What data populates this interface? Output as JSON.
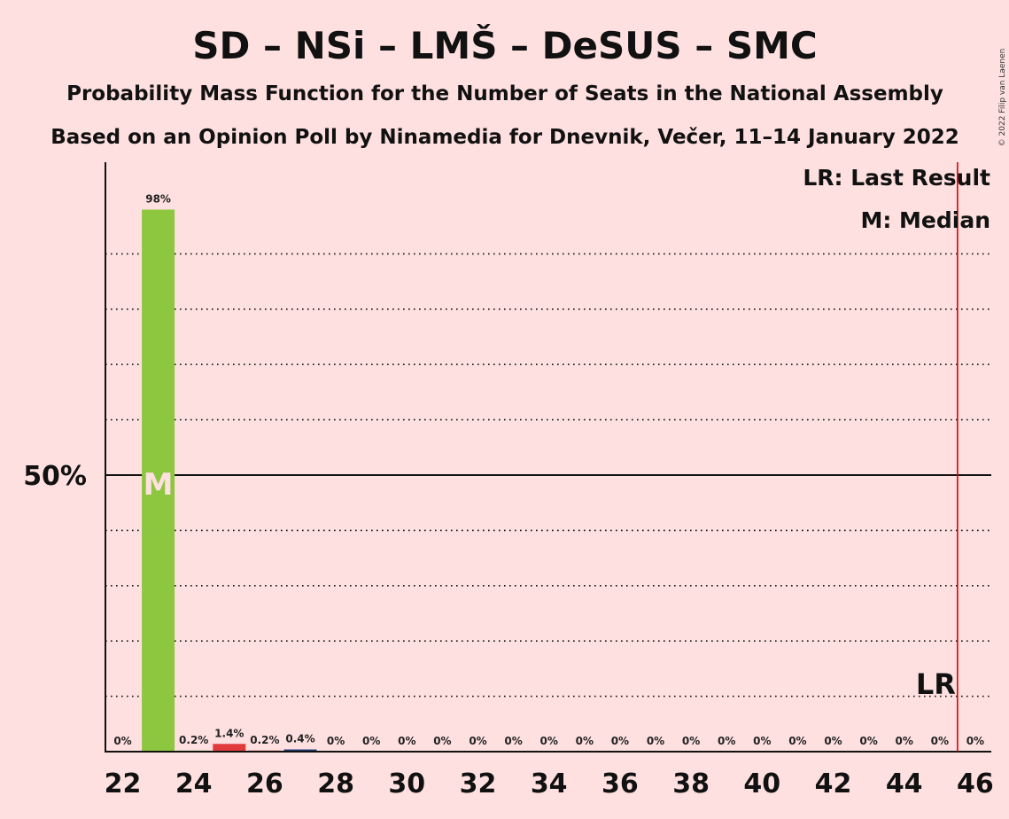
{
  "chart_data": {
    "type": "bar",
    "title": "SD – NSi – LMŠ – DeSUS – SMC",
    "subtitle_1": "Probability Mass Function for the Number of Seats in the National Assembly",
    "subtitle_2": "Based on an Opinion Poll by Ninamedia for Dnevnik, Večer, 11–14 January 2022",
    "copyright": "© 2022 Filip van Laenen",
    "xlabel": "",
    "ylabel": "",
    "x": [
      22,
      23,
      24,
      25,
      26,
      27,
      28,
      29,
      30,
      31,
      32,
      33,
      34,
      35,
      36,
      37,
      38,
      39,
      40,
      41,
      42,
      43,
      44,
      45,
      46
    ],
    "values": [
      0,
      98,
      0.2,
      1.4,
      0.2,
      0.4,
      0,
      0,
      0,
      0,
      0,
      0,
      0,
      0,
      0,
      0,
      0,
      0,
      0,
      0,
      0,
      0,
      0,
      0,
      0
    ],
    "value_labels": [
      "0%",
      "98%",
      "0.2%",
      "1.4%",
      "0.2%",
      "0.4%",
      "0%",
      "0%",
      "0%",
      "0%",
      "0%",
      "0%",
      "0%",
      "0%",
      "0%",
      "0%",
      "0%",
      "0%",
      "0%",
      "0%",
      "0%",
      "0%",
      "0%",
      "0%",
      "0%"
    ],
    "bar_colors": [
      "#8dc63f",
      "#8dc63f",
      "#8dc63f",
      "#e03a3a",
      "#e03a3a",
      "#1f3a7a",
      "#8dc63f",
      "#8dc63f",
      "#8dc63f",
      "#8dc63f",
      "#8dc63f",
      "#8dc63f",
      "#8dc63f",
      "#8dc63f",
      "#8dc63f",
      "#8dc63f",
      "#8dc63f",
      "#8dc63f",
      "#8dc63f",
      "#8dc63f",
      "#8dc63f",
      "#8dc63f",
      "#8dc63f",
      "#8dc63f",
      "#8dc63f"
    ],
    "xticks": [
      22,
      24,
      26,
      28,
      30,
      32,
      34,
      36,
      38,
      40,
      42,
      44,
      46
    ],
    "ytick_label": "50%",
    "ylim": [
      0,
      100
    ],
    "gridlines": [
      10,
      20,
      30,
      40,
      60,
      70,
      80,
      90
    ],
    "median": 23,
    "median_label": "M",
    "last_result": 45.5,
    "last_result_label": "LR",
    "legend": [
      "LR: Last Result",
      "M: Median"
    ],
    "legend_position": "top-right",
    "colors": {
      "background": "#ffe0e0",
      "median_bar": "#8dc63f",
      "lr_line": "#e00000"
    }
  }
}
